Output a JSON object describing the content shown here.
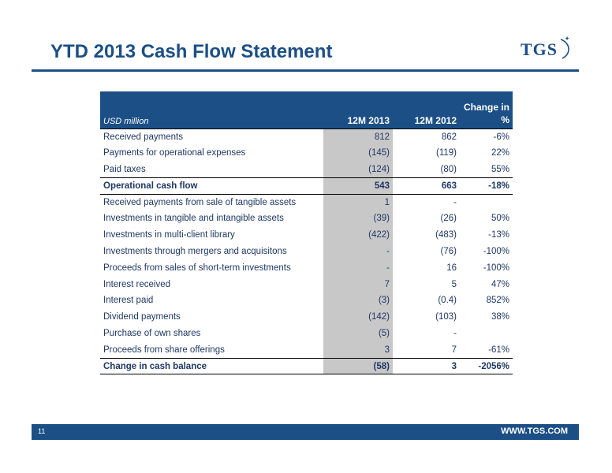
{
  "header": {
    "title": "YTD 2013 Cash Flow Statement",
    "logo_text": "TGS"
  },
  "table": {
    "columns": {
      "label": "USD million",
      "y2013": "12M 2013",
      "y2012": "12M 2012",
      "change": "Change in\n%"
    },
    "rows": [
      {
        "label": "Received payments",
        "y2013": "812",
        "y2012": "862",
        "change": "-6%"
      },
      {
        "label": "Payments for operational expenses",
        "y2013": "(145)",
        "y2012": "(119)",
        "change": "22%"
      },
      {
        "label": "Paid taxes",
        "y2013": "(124)",
        "y2012": "(80)",
        "change": "55%"
      },
      {
        "label": "Operational cash flow",
        "y2013": "543",
        "y2012": "663",
        "change": "-18%"
      },
      {
        "label": "Received payments from sale of tangible assets",
        "y2013": "1",
        "y2012": "-",
        "change": ""
      },
      {
        "label": "Investments in tangible and intangible assets",
        "y2013": "(39)",
        "y2012": "(26)",
        "change": "50%"
      },
      {
        "label": "Investments in multi-client library",
        "y2013": "(422)",
        "y2012": "(483)",
        "change": "-13%"
      },
      {
        "label": "Investments through mergers and acquisitons",
        "y2013": "-",
        "y2012": "(76)",
        "change": "-100%"
      },
      {
        "label": "Proceeds from sales of short-term investments",
        "y2013": "-",
        "y2012": "16",
        "change": "-100%"
      },
      {
        "label": "Interest received",
        "y2013": "7",
        "y2012": "5",
        "change": "47%"
      },
      {
        "label": "Interest paid",
        "y2013": "(3)",
        "y2012": "(0.4)",
        "change": "852%"
      },
      {
        "label": "Dividend payments",
        "y2013": "(142)",
        "y2012": "(103)",
        "change": "38%"
      },
      {
        "label": "Purchase of own shares",
        "y2013": "(5)",
        "y2012": "-",
        "change": ""
      },
      {
        "label": "Proceeds from share offerings",
        "y2013": "3",
        "y2012": "7",
        "change": "-61%"
      },
      {
        "label": "Change in cash balance",
        "y2013": "(58)",
        "y2012": "3",
        "change": "-2056%"
      }
    ]
  },
  "footer": {
    "page_number": "11",
    "url": "WWW.TGS.COM"
  },
  "colors": {
    "brand_blue": "#1c4f86",
    "highlight_column": "#c8c8c8"
  }
}
